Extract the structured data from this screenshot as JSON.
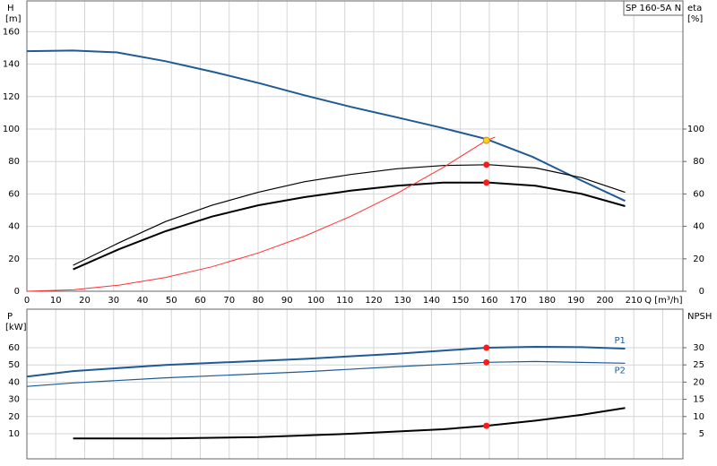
{
  "chart_data": [
    {
      "type": "line",
      "title": "SP 160-5A N",
      "ylabel": "H",
      "yunit": "[m]",
      "y2label": "eta",
      "y2unit": "[%]",
      "xlabel": "Q [m³/h]",
      "xlim": [
        0,
        227
      ],
      "xticks": [
        0,
        10,
        20,
        30,
        40,
        50,
        60,
        70,
        80,
        90,
        100,
        110,
        120,
        130,
        140,
        150,
        160,
        170,
        180,
        190,
        200,
        210
      ],
      "show_xtick_labels": true,
      "ylim": [
        0,
        179
      ],
      "yticks": [
        0,
        20,
        40,
        60,
        80,
        100,
        120,
        140,
        160
      ],
      "y2lim": [
        0,
        179
      ],
      "y2ticks": [
        0,
        20,
        40,
        60,
        80,
        100
      ],
      "grid": true,
      "series": [
        {
          "color": "#1f5a96",
          "width": 2,
          "axis": "y",
          "x": [
            0,
            16,
            31,
            48,
            65,
            81,
            96,
            112,
            127,
            143,
            159,
            175,
            191,
            207
          ],
          "values": [
            148,
            148.4,
            147.3,
            141.8,
            135,
            128,
            120.8,
            113.7,
            107.6,
            101,
            93.8,
            82.8,
            69,
            55.7
          ]
        },
        {
          "color": "#000000",
          "width": 1.2,
          "axis": "y2",
          "x": [
            16,
            32,
            48,
            64,
            80,
            96,
            112,
            128,
            144,
            160,
            176,
            192,
            207
          ],
          "values": [
            16,
            30,
            43,
            53,
            61,
            67.5,
            72,
            75.5,
            77.5,
            78,
            76,
            70,
            61
          ]
        },
        {
          "color": "#000000",
          "width": 2,
          "axis": "y2",
          "x": [
            16,
            32,
            48,
            64,
            80,
            96,
            112,
            128,
            144,
            160,
            176,
            192,
            207
          ],
          "values": [
            13.5,
            26,
            37,
            46,
            53,
            58,
            62,
            65,
            67,
            67,
            65,
            60,
            52.5
          ]
        },
        {
          "color": "#ff3030",
          "width": 1,
          "axis": "y",
          "x": [
            0,
            16,
            32,
            48,
            64,
            80,
            96,
            112,
            128,
            144,
            159,
            162
          ],
          "values": [
            0,
            0.9,
            3.8,
            8.5,
            15.1,
            23.6,
            33.9,
            46.2,
            60.3,
            76.3,
            93,
            95
          ]
        },
        {
          "marker": true,
          "color": "#ff1a1a",
          "axis": "y2",
          "x": [
            159,
            159
          ],
          "values": [
            78,
            67
          ]
        },
        {
          "marker": true,
          "color": "#ffd21a",
          "axis": "y",
          "x": [
            159
          ],
          "values": [
            93
          ]
        }
      ]
    },
    {
      "type": "line",
      "ylabel": "P",
      "yunit": "[kW]",
      "y2label": "NPSH",
      "xlim": [
        0,
        227
      ],
      "xticks": [
        0,
        10,
        20,
        30,
        40,
        50,
        60,
        70,
        80,
        90,
        100,
        110,
        120,
        130,
        140,
        150,
        160,
        170,
        180,
        190,
        200,
        210,
        220
      ],
      "show_xtick_labels": false,
      "ylim": [
        -4.6,
        82.4
      ],
      "yticks": [
        10,
        20,
        30,
        40,
        50,
        60
      ],
      "y2lim": [
        -2.3,
        41.2
      ],
      "y2ticks": [
        5,
        10,
        15,
        20,
        25,
        30
      ],
      "grid": true,
      "series": [
        {
          "name": "P1",
          "color": "#1f5a96",
          "width": 2,
          "axis": "y",
          "x": [
            0,
            16,
            48,
            96,
            128,
            159,
            176,
            192,
            207
          ],
          "values": [
            43.2,
            46.4,
            50,
            53.5,
            56.5,
            60,
            60.5,
            60.3,
            59.5
          ]
        },
        {
          "name": "P2",
          "color": "#1f5a96",
          "width": 1.2,
          "axis": "y",
          "x": [
            0,
            16,
            48,
            96,
            128,
            159,
            176,
            207
          ],
          "values": [
            37.5,
            39.5,
            42.5,
            46,
            49,
            51.5,
            52,
            51
          ]
        },
        {
          "color": "#000000",
          "width": 2,
          "axis": "y2",
          "x": [
            16,
            48,
            80,
            112,
            144,
            159,
            176,
            192,
            207
          ],
          "values": [
            3.6,
            3.6,
            4,
            5,
            6.3,
            7.3,
            8.8,
            10.5,
            12.5
          ]
        },
        {
          "marker": true,
          "color": "#ff1a1a",
          "axis": "y",
          "x": [
            159,
            159
          ],
          "values": [
            60,
            51.5
          ]
        },
        {
          "marker": true,
          "color": "#ff1a1a",
          "axis": "y2",
          "x": [
            159
          ],
          "values": [
            7.3
          ]
        }
      ]
    }
  ]
}
